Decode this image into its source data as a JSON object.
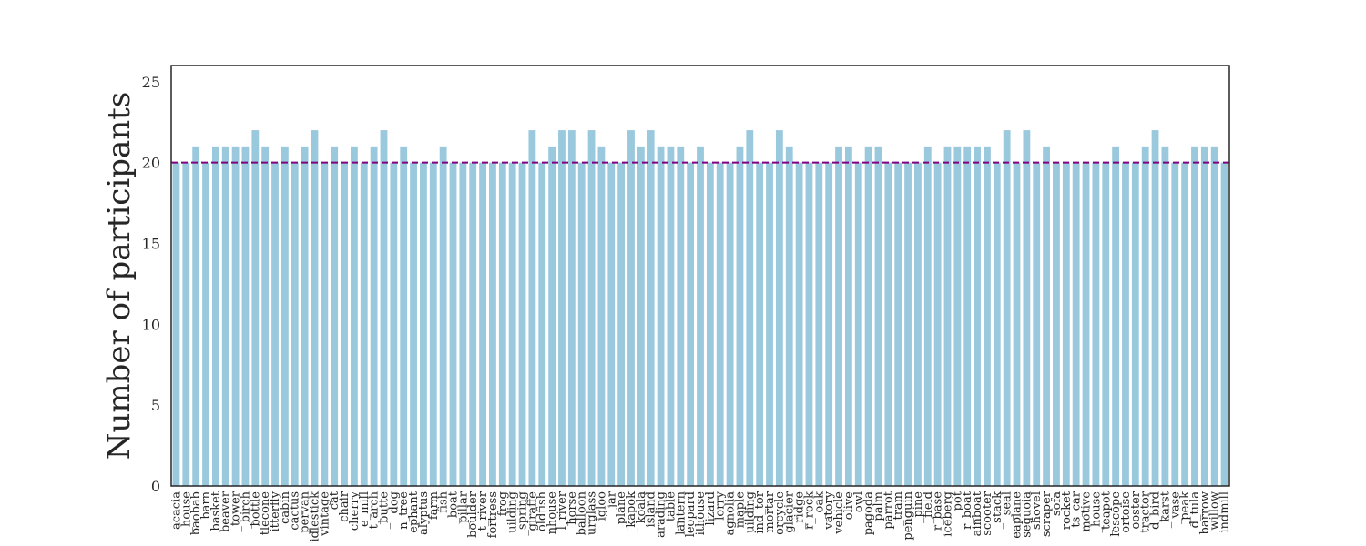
{
  "chart_data": {
    "type": "bar",
    "title": "",
    "xlabel": "",
    "ylabel": "Number of participants",
    "ylim": [
      0,
      26
    ],
    "yticks": [
      0,
      5,
      10,
      15,
      20,
      25
    ],
    "grid": false,
    "reference_line": {
      "value": 20,
      "style": "dashed",
      "color": "#800080"
    },
    "bar_color": "#9ac9dd",
    "categories": [
      "acacia",
      "_house",
      "baobab",
      "barn",
      "basket",
      "beaver",
      "_tower",
      "_birch",
      "bottle",
      "tlecone",
      "itterfly",
      "cabin",
      "cactus",
      "pervan",
      "idlestick",
      "vintage",
      "cat",
      "chair",
      "cherry",
      "e_mill",
      "t_arch",
      "_butte",
      "dog",
      "n_tree",
      "ephant",
      "alyptus",
      "farm",
      "fish",
      "_boat",
      "_pillar",
      "boulder",
      "t_river",
      "fortress",
      "frog",
      "uilding",
      "_spring",
      "giraffe",
      "oldfish",
      "nhouse",
      "l_river",
      "horse",
      "balloon",
      "urglass",
      "igloo",
      "jar",
      "_plane",
      "_kapok",
      "koala",
      "island",
      "arading",
      "_table",
      "lantern",
      "leopard",
      "ithouse",
      "lizard",
      "lorry",
      "agnolia",
      "maple",
      "uilding",
      "ind_tor",
      "mortar",
      "orcycle",
      "glacier",
      "_ridge",
      "r_rock",
      "_oak",
      "vatory",
      "vehicle",
      "olive",
      "owl",
      "pagoda",
      "palm",
      "parrot",
      "_tram",
      "penguin",
      "_pine",
      "_field",
      "r_base",
      "iceberg",
      "pot",
      "r_boat",
      "ainboat",
      "scooter",
      "_stack",
      "_seal",
      "eaplane",
      "sequoia",
      "shovel",
      "scraper",
      "sofa",
      "rocket",
      "ts_car",
      "motive",
      "_house",
      "_teapot",
      "lescope",
      "ortoise",
      "ooster",
      "tractor",
      "d_bird",
      "_karst",
      "_vase",
      "_peak",
      "d_tula",
      "barrow",
      "willow",
      "indmill"
    ],
    "values": [
      20,
      20,
      21,
      20,
      21,
      21,
      21,
      21,
      22,
      21,
      20,
      21,
      20,
      21,
      22,
      20,
      21,
      20,
      21,
      20,
      21,
      22,
      20,
      21,
      20,
      20,
      20,
      21,
      20,
      20,
      20,
      20,
      20,
      20,
      20,
      20,
      22,
      20,
      21,
      22,
      22,
      20,
      22,
      21,
      20,
      20,
      22,
      21,
      22,
      21,
      21,
      21,
      20,
      21,
      20,
      20,
      20,
      21,
      22,
      20,
      20,
      22,
      21,
      20,
      20,
      20,
      20,
      21,
      21,
      20,
      21,
      21,
      20,
      20,
      20,
      20,
      21,
      20,
      21,
      21,
      21,
      21,
      21,
      20,
      22,
      20,
      22,
      20,
      21,
      20,
      20,
      20,
      20,
      20,
      20,
      21,
      20,
      20,
      21,
      22,
      21,
      20,
      20,
      21,
      21,
      21,
      20
    ]
  }
}
